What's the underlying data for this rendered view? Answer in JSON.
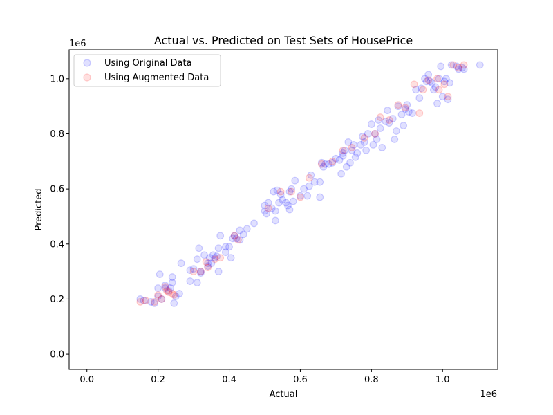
{
  "chart_data": {
    "type": "scatter",
    "title": "Actual vs. Predicted on Test Sets of HousePrice",
    "xlabel": "Actual",
    "ylabel": "Predicted",
    "x_offset_label": "1e6",
    "y_offset_label": "1e6",
    "xlim": [
      -0.05,
      1.155
    ],
    "ylim": [
      -0.055,
      1.105
    ],
    "xticks": [
      0.0,
      0.2,
      0.4,
      0.6,
      0.8,
      1.0
    ],
    "yticks": [
      0.0,
      0.2,
      0.4,
      0.6,
      0.8,
      1.0
    ],
    "xtick_labels": [
      "0.0",
      "0.2",
      "0.4",
      "0.6",
      "0.8",
      "1.0"
    ],
    "ytick_labels": [
      "0.0",
      "0.2",
      "0.4",
      "0.6",
      "0.8",
      "1.0"
    ],
    "grid": false,
    "legend_position": "upper-left",
    "colors": {
      "original": "#0000ff",
      "augmented": "#ff0000",
      "axes": "#000000"
    },
    "series": [
      {
        "name": "Using Original Data",
        "color": "#0000ff",
        "alpha": 0.12,
        "points": [
          [
            0.15,
            0.2
          ],
          [
            0.16,
            0.195
          ],
          [
            0.18,
            0.19
          ],
          [
            0.19,
            0.185
          ],
          [
            0.2,
            0.21
          ],
          [
            0.2,
            0.24
          ],
          [
            0.205,
            0.29
          ],
          [
            0.21,
            0.2
          ],
          [
            0.22,
            0.25
          ],
          [
            0.22,
            0.24
          ],
          [
            0.23,
            0.23
          ],
          [
            0.235,
            0.24
          ],
          [
            0.24,
            0.28
          ],
          [
            0.24,
            0.26
          ],
          [
            0.245,
            0.185
          ],
          [
            0.25,
            0.21
          ],
          [
            0.26,
            0.22
          ],
          [
            0.265,
            0.33
          ],
          [
            0.29,
            0.305
          ],
          [
            0.29,
            0.265
          ],
          [
            0.3,
            0.31
          ],
          [
            0.31,
            0.26
          ],
          [
            0.31,
            0.345
          ],
          [
            0.315,
            0.385
          ],
          [
            0.32,
            0.295
          ],
          [
            0.32,
            0.3
          ],
          [
            0.33,
            0.36
          ],
          [
            0.34,
            0.33
          ],
          [
            0.34,
            0.32
          ],
          [
            0.345,
            0.35
          ],
          [
            0.35,
            0.33
          ],
          [
            0.355,
            0.36
          ],
          [
            0.36,
            0.35
          ],
          [
            0.365,
            0.355
          ],
          [
            0.37,
            0.385
          ],
          [
            0.37,
            0.3
          ],
          [
            0.375,
            0.43
          ],
          [
            0.39,
            0.37
          ],
          [
            0.39,
            0.39
          ],
          [
            0.4,
            0.39
          ],
          [
            0.405,
            0.35
          ],
          [
            0.41,
            0.42
          ],
          [
            0.415,
            0.43
          ],
          [
            0.42,
            0.42
          ],
          [
            0.43,
            0.415
          ],
          [
            0.43,
            0.45
          ],
          [
            0.44,
            0.435
          ],
          [
            0.45,
            0.455
          ],
          [
            0.47,
            0.475
          ],
          [
            0.5,
            0.54
          ],
          [
            0.5,
            0.52
          ],
          [
            0.505,
            0.51
          ],
          [
            0.51,
            0.55
          ],
          [
            0.52,
            0.53
          ],
          [
            0.525,
            0.59
          ],
          [
            0.53,
            0.52
          ],
          [
            0.53,
            0.485
          ],
          [
            0.535,
            0.595
          ],
          [
            0.54,
            0.55
          ],
          [
            0.545,
            0.58
          ],
          [
            0.55,
            0.56
          ],
          [
            0.56,
            0.55
          ],
          [
            0.565,
            0.54
          ],
          [
            0.57,
            0.525
          ],
          [
            0.57,
            0.59
          ],
          [
            0.575,
            0.6
          ],
          [
            0.58,
            0.555
          ],
          [
            0.585,
            0.63
          ],
          [
            0.6,
            0.575
          ],
          [
            0.61,
            0.6
          ],
          [
            0.62,
            0.575
          ],
          [
            0.625,
            0.61
          ],
          [
            0.63,
            0.65
          ],
          [
            0.64,
            0.625
          ],
          [
            0.655,
            0.625
          ],
          [
            0.655,
            0.57
          ],
          [
            0.66,
            0.695
          ],
          [
            0.665,
            0.68
          ],
          [
            0.67,
            0.69
          ],
          [
            0.68,
            0.69
          ],
          [
            0.69,
            0.695
          ],
          [
            0.7,
            0.71
          ],
          [
            0.71,
            0.705
          ],
          [
            0.715,
            0.655
          ],
          [
            0.72,
            0.73
          ],
          [
            0.72,
            0.72
          ],
          [
            0.725,
            0.74
          ],
          [
            0.73,
            0.68
          ],
          [
            0.735,
            0.77
          ],
          [
            0.74,
            0.695
          ],
          [
            0.745,
            0.74
          ],
          [
            0.75,
            0.76
          ],
          [
            0.755,
            0.715
          ],
          [
            0.76,
            0.73
          ],
          [
            0.77,
            0.76
          ],
          [
            0.775,
            0.79
          ],
          [
            0.78,
            0.77
          ],
          [
            0.785,
            0.74
          ],
          [
            0.79,
            0.8
          ],
          [
            0.8,
            0.835
          ],
          [
            0.805,
            0.76
          ],
          [
            0.81,
            0.8
          ],
          [
            0.815,
            0.78
          ],
          [
            0.82,
            0.85
          ],
          [
            0.825,
            0.82
          ],
          [
            0.83,
            0.75
          ],
          [
            0.84,
            0.845
          ],
          [
            0.845,
            0.885
          ],
          [
            0.85,
            0.84
          ],
          [
            0.86,
            0.855
          ],
          [
            0.865,
            0.78
          ],
          [
            0.87,
            0.81
          ],
          [
            0.875,
            0.9
          ],
          [
            0.885,
            0.87
          ],
          [
            0.89,
            0.83
          ],
          [
            0.895,
            0.89
          ],
          [
            0.9,
            0.905
          ],
          [
            0.905,
            0.88
          ],
          [
            0.915,
            0.875
          ],
          [
            0.925,
            0.96
          ],
          [
            0.935,
            0.93
          ],
          [
            0.94,
            0.965
          ],
          [
            0.95,
            1.0
          ],
          [
            0.955,
            0.99
          ],
          [
            0.96,
            1.015
          ],
          [
            0.965,
            0.99
          ],
          [
            0.97,
            0.985
          ],
          [
            0.975,
            0.96
          ],
          [
            0.98,
            0.97
          ],
          [
            0.985,
            0.91
          ],
          [
            0.99,
            1.0
          ],
          [
            0.995,
            1.045
          ],
          [
            1.0,
            0.935
          ],
          [
            1.005,
            0.99
          ],
          [
            1.01,
            1.0
          ],
          [
            1.015,
            0.925
          ],
          [
            1.02,
            0.985
          ],
          [
            1.025,
            1.05
          ],
          [
            1.04,
            1.045
          ],
          [
            1.045,
            1.035
          ],
          [
            1.055,
            1.04
          ],
          [
            1.06,
            1.035
          ],
          [
            1.105,
            1.05
          ]
        ]
      },
      {
        "name": "Using Augmented Data",
        "color": "#ff0000",
        "alpha": 0.12,
        "points": [
          [
            0.15,
            0.19
          ],
          [
            0.165,
            0.195
          ],
          [
            0.19,
            0.19
          ],
          [
            0.2,
            0.215
          ],
          [
            0.21,
            0.2
          ],
          [
            0.22,
            0.245
          ],
          [
            0.225,
            0.23
          ],
          [
            0.23,
            0.225
          ],
          [
            0.24,
            0.22
          ],
          [
            0.245,
            0.215
          ],
          [
            0.3,
            0.3
          ],
          [
            0.32,
            0.3
          ],
          [
            0.335,
            0.335
          ],
          [
            0.34,
            0.315
          ],
          [
            0.36,
            0.345
          ],
          [
            0.375,
            0.35
          ],
          [
            0.415,
            0.43
          ],
          [
            0.425,
            0.415
          ],
          [
            0.51,
            0.53
          ],
          [
            0.545,
            0.59
          ],
          [
            0.575,
            0.59
          ],
          [
            0.6,
            0.57
          ],
          [
            0.625,
            0.64
          ],
          [
            0.66,
            0.69
          ],
          [
            0.69,
            0.7
          ],
          [
            0.72,
            0.74
          ],
          [
            0.745,
            0.75
          ],
          [
            0.78,
            0.785
          ],
          [
            0.81,
            0.8
          ],
          [
            0.825,
            0.86
          ],
          [
            0.85,
            0.85
          ],
          [
            0.875,
            0.905
          ],
          [
            0.895,
            0.895
          ],
          [
            0.92,
            0.98
          ],
          [
            0.935,
            0.875
          ],
          [
            0.945,
            0.96
          ],
          [
            0.96,
            0.995
          ],
          [
            0.985,
            1.0
          ],
          [
            0.99,
            0.96
          ],
          [
            1.005,
            0.98
          ],
          [
            1.015,
            0.935
          ],
          [
            1.03,
            1.05
          ],
          [
            1.045,
            1.04
          ],
          [
            1.06,
            1.05
          ]
        ]
      }
    ]
  }
}
